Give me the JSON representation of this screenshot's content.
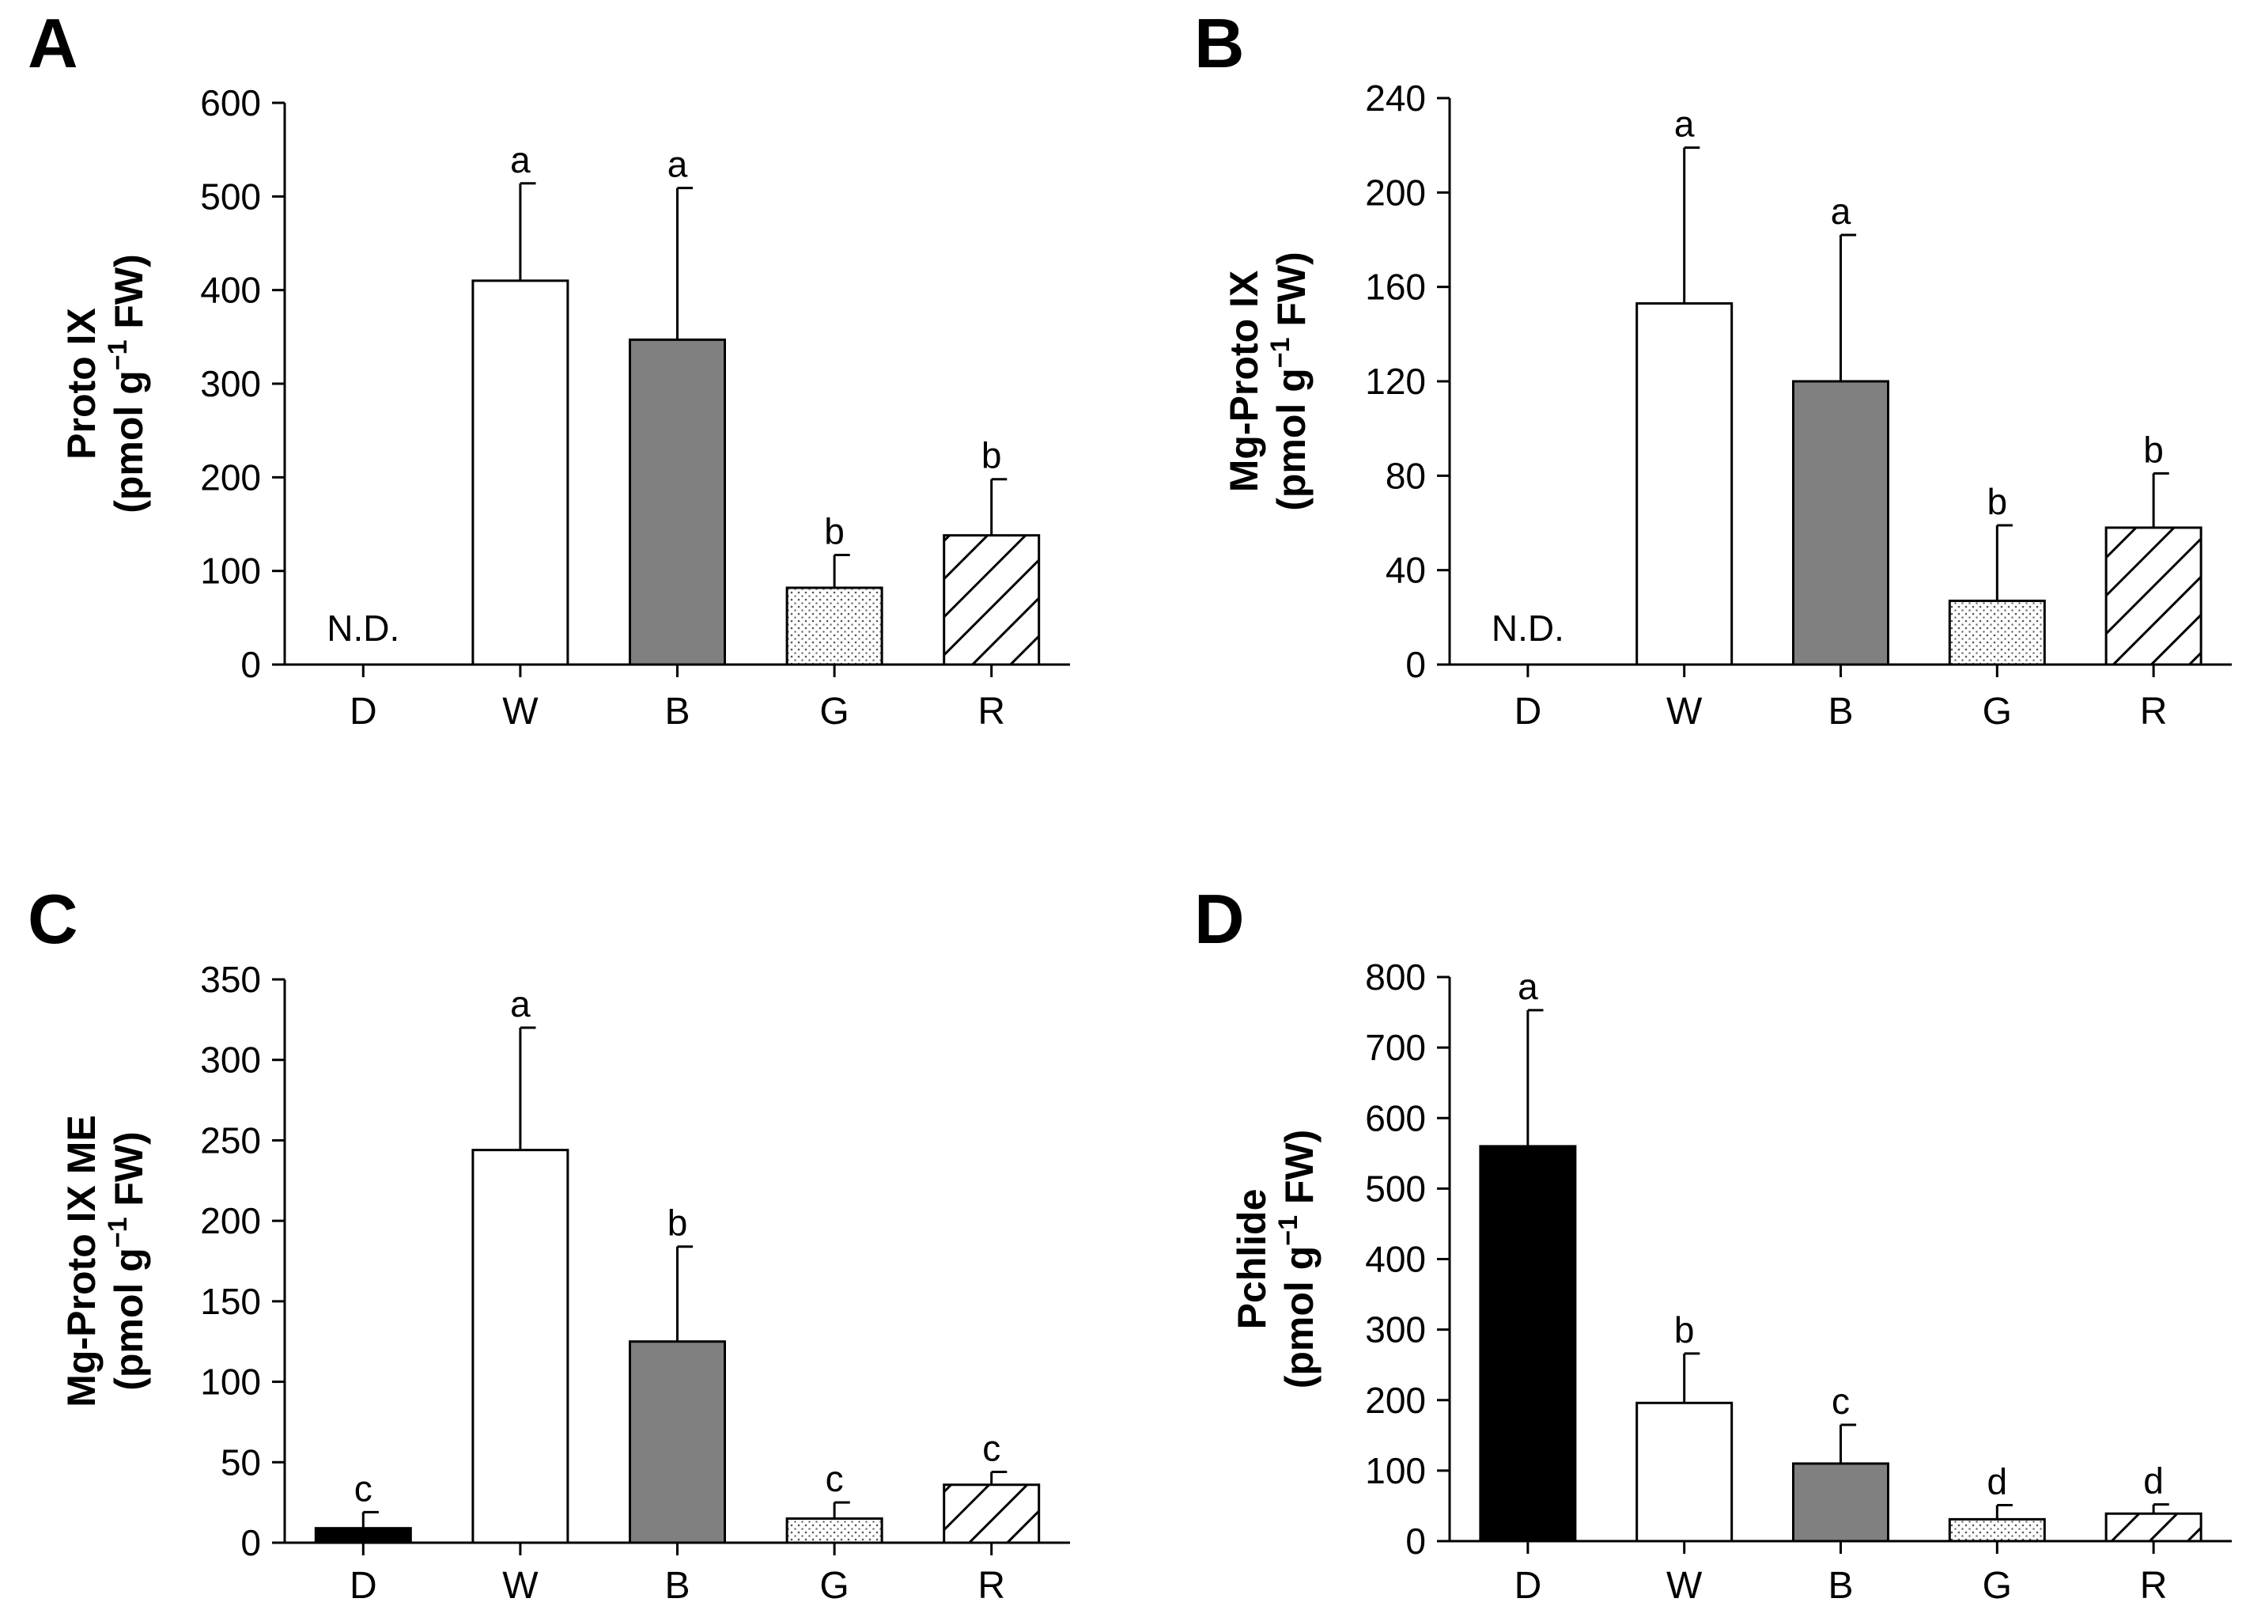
{
  "patterns": {
    "black": "#000000",
    "white": "#ffffff",
    "gray": "#808080",
    "dotted": "dotted",
    "hatched": "hatched"
  },
  "chart_data": [
    {
      "panel": "A",
      "type": "bar",
      "ylabel_line1": "Proto IX",
      "ylabel_line2_pre": "(pmol g",
      "ylabel_sup": "−1",
      "ylabel_line2_post": " FW)",
      "ylim": [
        0,
        600
      ],
      "ticks": [
        0,
        100,
        200,
        300,
        400,
        500,
        600
      ],
      "categories": [
        "D",
        "W",
        "B",
        "G",
        "R"
      ],
      "fills": [
        "black",
        "white",
        "gray",
        "dotted",
        "hatched"
      ],
      "values": [
        null,
        410,
        347,
        82,
        138
      ],
      "errors": [
        null,
        104,
        162,
        35,
        60
      ],
      "letters": [
        "",
        "a",
        "a",
        "b",
        "b"
      ],
      "nd_text": "N.D."
    },
    {
      "panel": "B",
      "type": "bar",
      "ylabel_line1": "Mg-Proto IX",
      "ylabel_line2_pre": "(pmol g",
      "ylabel_sup": "−1",
      "ylabel_line2_post": " FW)",
      "ylim": [
        0,
        240
      ],
      "ticks": [
        0,
        40,
        80,
        120,
        160,
        200,
        240
      ],
      "categories": [
        "D",
        "W",
        "B",
        "G",
        "R"
      ],
      "fills": [
        "black",
        "white",
        "gray",
        "dotted",
        "hatched"
      ],
      "values": [
        null,
        153,
        120,
        27,
        58
      ],
      "errors": [
        null,
        66,
        62,
        32,
        23
      ],
      "letters": [
        "",
        "a",
        "a",
        "b",
        "b"
      ],
      "nd_text": "N.D."
    },
    {
      "panel": "C",
      "type": "bar",
      "ylabel_line1": "Mg-Proto IX ME",
      "ylabel_line2_pre": "(pmol g",
      "ylabel_sup": "−1",
      "ylabel_line2_post": " FW)",
      "ylim": [
        0,
        350
      ],
      "ticks": [
        0,
        50,
        100,
        150,
        200,
        250,
        300,
        350
      ],
      "categories": [
        "D",
        "W",
        "B",
        "G",
        "R"
      ],
      "fills": [
        "black",
        "white",
        "gray",
        "dotted",
        "hatched"
      ],
      "values": [
        9,
        244,
        125,
        15,
        36
      ],
      "errors": [
        10,
        76,
        59,
        10,
        8
      ],
      "letters": [
        "c",
        "a",
        "b",
        "c",
        "c"
      ],
      "nd_text": ""
    },
    {
      "panel": "D",
      "type": "bar",
      "ylabel_line1": "Pchlide",
      "ylabel_line2_pre": "(pmol g",
      "ylabel_sup": "−1",
      "ylabel_line2_post": " FW)",
      "ylim": [
        0,
        800
      ],
      "ticks": [
        0,
        100,
        200,
        300,
        400,
        500,
        600,
        700,
        800
      ],
      "categories": [
        "D",
        "W",
        "B",
        "G",
        "R"
      ],
      "fills": [
        "black",
        "white",
        "gray",
        "dotted",
        "hatched"
      ],
      "values": [
        560,
        196,
        110,
        31,
        39
      ],
      "errors": [
        193,
        70,
        55,
        20,
        13
      ],
      "letters": [
        "a",
        "b",
        "c",
        "d",
        "d"
      ],
      "nd_text": ""
    }
  ]
}
